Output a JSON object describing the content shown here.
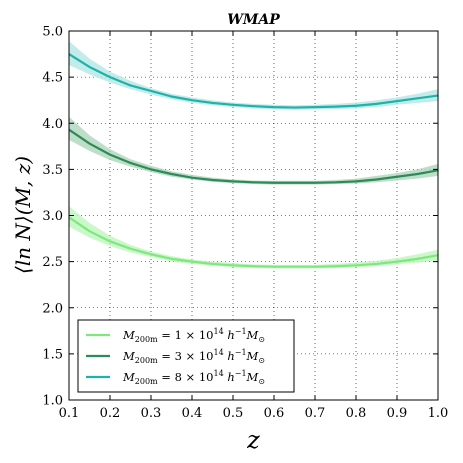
{
  "chart_data": {
    "type": "line",
    "title": "WMAP",
    "xlabel": "z",
    "ylabel": "⟨ln N⟩(M, z)",
    "xlim": [
      0.1,
      1.0
    ],
    "ylim": [
      1.0,
      5.0
    ],
    "xticks": [
      0.1,
      0.2,
      0.3,
      0.4,
      0.5,
      0.6,
      0.7,
      0.8,
      0.9,
      1.0
    ],
    "xtick_labels": [
      "0.1",
      "0.2",
      "0.3",
      "0.4",
      "0.5",
      "0.6",
      "0.7",
      "0.8",
      "0.9",
      "1.0"
    ],
    "yticks": [
      1.0,
      1.5,
      2.0,
      2.5,
      3.0,
      3.5,
      4.0,
      4.5,
      5.0
    ],
    "ytick_labels": [
      "1.0",
      "1.5",
      "2.0",
      "2.5",
      "3.0",
      "3.5",
      "4.0",
      "4.5",
      "5.0"
    ],
    "grid": true,
    "legend_position": "lower-left",
    "x": [
      0.1,
      0.15,
      0.2,
      0.25,
      0.3,
      0.35,
      0.4,
      0.45,
      0.5,
      0.55,
      0.6,
      0.65,
      0.7,
      0.75,
      0.8,
      0.85,
      0.9,
      0.95,
      1.0
    ],
    "series": [
      {
        "name": "M_200m = 1 × 10^14 h^-1 M_⊙",
        "label_main": "M",
        "label_sub": "200m",
        "label_mid": " = 1 × 10",
        "label_exp": "14",
        "label_tail": " h",
        "label_exp2": "−1",
        "label_end": "M",
        "label_sub2": "⊙",
        "color": "#7ee87e",
        "band_color": "#b8f5b8",
        "values": [
          2.98,
          2.83,
          2.72,
          2.64,
          2.58,
          2.53,
          2.5,
          2.475,
          2.46,
          2.45,
          2.445,
          2.445,
          2.445,
          2.45,
          2.46,
          2.475,
          2.5,
          2.53,
          2.57
        ],
        "lower": [
          2.88,
          2.76,
          2.67,
          2.6,
          2.55,
          2.5,
          2.475,
          2.455,
          2.44,
          2.43,
          2.425,
          2.425,
          2.425,
          2.43,
          2.44,
          2.45,
          2.47,
          2.49,
          2.51
        ],
        "upper": [
          3.1,
          2.92,
          2.78,
          2.68,
          2.61,
          2.56,
          2.525,
          2.5,
          2.485,
          2.47,
          2.465,
          2.465,
          2.465,
          2.475,
          2.49,
          2.51,
          2.54,
          2.58,
          2.63
        ]
      },
      {
        "name": "M_200m = 3 × 10^14 h^-1 M_⊙",
        "label_main": "M",
        "label_sub": "200m",
        "label_mid": " = 3 × 10",
        "label_exp": "14",
        "label_tail": " h",
        "label_exp2": "−1",
        "label_end": "M",
        "label_sub2": "⊙",
        "color": "#2e8b57",
        "band_color": "#a8d3b8",
        "values": [
          3.93,
          3.78,
          3.66,
          3.57,
          3.5,
          3.45,
          3.41,
          3.385,
          3.37,
          3.36,
          3.355,
          3.355,
          3.355,
          3.36,
          3.37,
          3.39,
          3.42,
          3.45,
          3.49
        ],
        "lower": [
          3.82,
          3.7,
          3.6,
          3.53,
          3.47,
          3.42,
          3.39,
          3.365,
          3.35,
          3.34,
          3.335,
          3.335,
          3.335,
          3.34,
          3.345,
          3.36,
          3.38,
          3.4,
          3.43
        ],
        "upper": [
          4.07,
          3.87,
          3.72,
          3.61,
          3.54,
          3.48,
          3.44,
          3.41,
          3.39,
          3.38,
          3.375,
          3.375,
          3.375,
          3.385,
          3.4,
          3.43,
          3.46,
          3.5,
          3.56
        ]
      },
      {
        "name": "M_200m = 8 × 10^14 h^-1 M_⊙",
        "label_main": "M",
        "label_sub": "200m",
        "label_mid": " = 8 × 10",
        "label_exp": "14",
        "label_tail": " h",
        "label_exp2": "−1",
        "label_end": "M",
        "label_sub2": "⊙",
        "color": "#20b2aa",
        "band_color": "#aee6e3",
        "values": [
          4.75,
          4.61,
          4.5,
          4.41,
          4.35,
          4.29,
          4.25,
          4.22,
          4.2,
          4.185,
          4.175,
          4.17,
          4.175,
          4.18,
          4.19,
          4.21,
          4.24,
          4.27,
          4.3
        ],
        "lower": [
          4.63,
          4.53,
          4.44,
          4.37,
          4.31,
          4.26,
          4.22,
          4.195,
          4.175,
          4.16,
          4.15,
          4.145,
          4.15,
          4.155,
          4.16,
          4.175,
          4.2,
          4.22,
          4.24
        ],
        "upper": [
          4.89,
          4.7,
          4.56,
          4.46,
          4.38,
          4.32,
          4.28,
          4.25,
          4.225,
          4.21,
          4.2,
          4.195,
          4.2,
          4.21,
          4.225,
          4.25,
          4.28,
          4.32,
          4.37
        ]
      }
    ]
  }
}
